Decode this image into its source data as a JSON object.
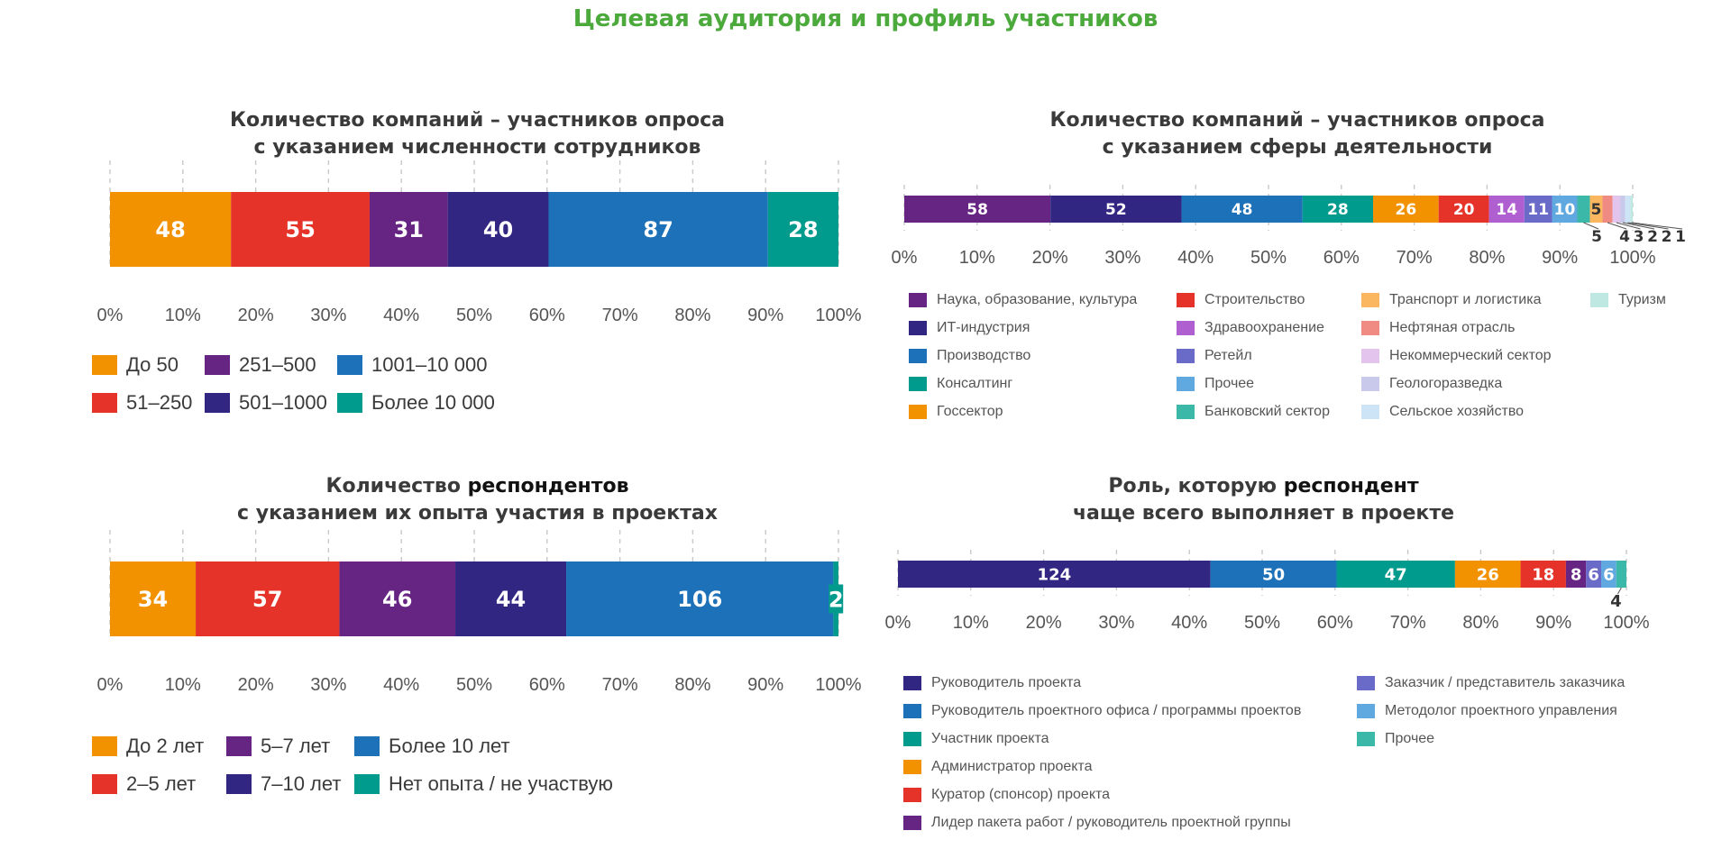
{
  "page_title": "Целевая аудитория и профиль участников",
  "colors": {
    "title": "#4caa3c",
    "orange": "#f39200",
    "red": "#e6332a",
    "purple": "#662483",
    "navy": "#312783",
    "blue": "#1d71b8",
    "teal": "#009b8c"
  },
  "chart_data": [
    {
      "id": "employees",
      "type": "bar",
      "orientation": "horizontal",
      "stacked": "100%",
      "title_lines": [
        "Количество компаний – участников опроса",
        "с указанием численности сотрудников"
      ],
      "xlim": [
        0,
        100
      ],
      "x_ticks": [
        "0%",
        "10%",
        "20%",
        "30%",
        "40%",
        "50%",
        "60%",
        "70%",
        "80%",
        "90%",
        "100%"
      ],
      "grid": "vertical dashed",
      "legend_position": "bottom",
      "series": [
        {
          "name": "До 50",
          "value": 48,
          "color": "#f39200"
        },
        {
          "name": "51–250",
          "value": 55,
          "color": "#e6332a"
        },
        {
          "name": "251–500",
          "value": 31,
          "color": "#662483"
        },
        {
          "name": "501–1000",
          "value": 40,
          "color": "#312783"
        },
        {
          "name": "1001–10 000",
          "value": 87,
          "color": "#1d71b8"
        },
        {
          "name": "Более 10 000",
          "value": 28,
          "color": "#009b8c"
        }
      ]
    },
    {
      "id": "industry",
      "type": "bar",
      "orientation": "horizontal",
      "stacked": "100%",
      "title_lines": [
        "Количество компаний – участников опроса",
        "с указанием сферы деятельности"
      ],
      "xlim": [
        0,
        100
      ],
      "x_ticks": [
        "0%",
        "10%",
        "20%",
        "30%",
        "40%",
        "50%",
        "60%",
        "70%",
        "80%",
        "90%",
        "100%"
      ],
      "grid": "vertical dashed",
      "legend_position": "bottom",
      "series": [
        {
          "name": "Наука, образование, культура",
          "value": 58,
          "color": "#662483"
        },
        {
          "name": "ИТ-индустрия",
          "value": 52,
          "color": "#312783"
        },
        {
          "name": "Производство",
          "value": 48,
          "color": "#1d71b8"
        },
        {
          "name": "Консалтинг",
          "value": 28,
          "color": "#009b8c"
        },
        {
          "name": "Госсектор",
          "value": 26,
          "color": "#f39200"
        },
        {
          "name": "Строительство",
          "value": 20,
          "color": "#e6332a"
        },
        {
          "name": "Здравоохранение",
          "value": 14,
          "color": "#b05fd1"
        },
        {
          "name": "Ретейл",
          "value": 11,
          "color": "#6a6ac9"
        },
        {
          "name": "Прочее",
          "value": 10,
          "color": "#5fa8e0"
        },
        {
          "name": "Банковский сектор",
          "value": 5,
          "color": "#3bb8a7"
        },
        {
          "name": "Транспорт и логистика",
          "value": 5,
          "color": "#fbb760"
        },
        {
          "name": "Нефтяная отрасль",
          "value": 4,
          "color": "#f08b83"
        },
        {
          "name": "Некоммерческий сектор",
          "value": 3,
          "color": "#e2c4ec"
        },
        {
          "name": "Геологоразведка",
          "value": 2,
          "color": "#c9c9ec"
        },
        {
          "name": "Сельское хозяйство",
          "value": 2,
          "color": "#cde4f6"
        },
        {
          "name": "Туризм",
          "value": 1,
          "color": "#bfe8e2"
        }
      ]
    },
    {
      "id": "experience",
      "type": "bar",
      "orientation": "horizontal",
      "stacked": "100%",
      "title_lines": [
        [
          "Количество ",
          "респондентов"
        ],
        [
          "с указанием их опыта участия в проектах"
        ]
      ],
      "xlim": [
        0,
        100
      ],
      "x_ticks": [
        "0%",
        "10%",
        "20%",
        "30%",
        "40%",
        "50%",
        "60%",
        "70%",
        "80%",
        "90%",
        "100%"
      ],
      "grid": "vertical dashed",
      "legend_position": "bottom",
      "series": [
        {
          "name": "До 2 лет",
          "value": 34,
          "color": "#f39200"
        },
        {
          "name": "2–5 лет",
          "value": 57,
          "color": "#e6332a"
        },
        {
          "name": "5–7 лет",
          "value": 46,
          "color": "#662483"
        },
        {
          "name": "7–10 лет",
          "value": 44,
          "color": "#312783"
        },
        {
          "name": "Более 10 лет",
          "value": 106,
          "color": "#1d71b8"
        },
        {
          "name": "Нет опыта / не участвую",
          "value": 2,
          "color": "#009b8c"
        }
      ]
    },
    {
      "id": "role",
      "type": "bar",
      "orientation": "horizontal",
      "stacked": "100%",
      "title_lines": [
        [
          "Роль, которую ",
          "респондент"
        ],
        [
          "чаще всего выполняет в проекте"
        ]
      ],
      "xlim": [
        0,
        100
      ],
      "x_ticks": [
        "0%",
        "10%",
        "20%",
        "30%",
        "40%",
        "50%",
        "60%",
        "70%",
        "80%",
        "90%",
        "100%"
      ],
      "grid": "vertical dashed",
      "legend_position": "bottom",
      "series": [
        {
          "name": "Руководитель проекта",
          "value": 124,
          "color": "#312783"
        },
        {
          "name": "Руководитель проектного офиса / программы проектов",
          "value": 50,
          "color": "#1d71b8"
        },
        {
          "name": "Участник проекта",
          "value": 47,
          "color": "#009b8c"
        },
        {
          "name": "Администратор проекта",
          "value": 26,
          "color": "#f39200"
        },
        {
          "name": "Куратор (спонсор) проекта",
          "value": 18,
          "color": "#e6332a"
        },
        {
          "name": "Лидер пакета работ / руководитель  проектной группы",
          "value": 8,
          "color": "#662483"
        },
        {
          "name": "Заказчик  / представитель заказчика",
          "value": 6,
          "color": "#6a6ac9"
        },
        {
          "name": "Методолог проектного управления",
          "value": 6,
          "color": "#5fa8e0"
        },
        {
          "name": "Прочее",
          "value": 4,
          "color": "#3bb8a7"
        }
      ]
    }
  ]
}
